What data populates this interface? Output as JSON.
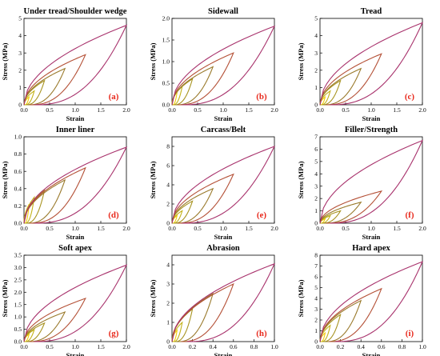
{
  "colors": {
    "cycles": [
      "#f2cc0c",
      "#c3b217",
      "#a79320",
      "#9a7a2c",
      "#b45036",
      "#a8326c"
    ],
    "panel_label": "#e8291c"
  },
  "chart_data": [
    {
      "type": "line",
      "title": "Under tread/Shoulder wedge",
      "xlabel": "Strain",
      "ylabel": "Stress (MPa)",
      "label": "(a)",
      "xlim": [
        0,
        2.0
      ],
      "xticks": [
        "0.0",
        "0.5",
        "1.0",
        "1.5",
        "2.0"
      ],
      "xtick_vals": [
        0,
        0.5,
        1.0,
        1.5,
        2.0
      ],
      "ylim": [
        0,
        5
      ],
      "yticks": [
        "0",
        "1",
        "2",
        "3",
        "4",
        "5"
      ],
      "ytick_vals": [
        0,
        1,
        2,
        3,
        4,
        5
      ],
      "cycles": [
        {
          "strain": 0.1,
          "stress": 0.45
        },
        {
          "strain": 0.2,
          "stress": 0.8
        },
        {
          "strain": 0.4,
          "stress": 1.4
        },
        {
          "strain": 0.8,
          "stress": 2.1
        },
        {
          "strain": 1.2,
          "stress": 2.9
        },
        {
          "strain": 2.0,
          "stress": 4.6
        }
      ],
      "loading_shape": 0.5,
      "unloading_shape": 2.5,
      "residual_fraction": 0.1
    },
    {
      "type": "line",
      "title": "Sidewall",
      "xlabel": "Strain",
      "ylabel": "Stress (MPa)",
      "label": "(b)",
      "xlim": [
        0,
        2.0
      ],
      "xticks": [
        "0.0",
        "0.5",
        "1.0",
        "1.5",
        "2.0"
      ],
      "xtick_vals": [
        0,
        0.5,
        1.0,
        1.5,
        2.0
      ],
      "ylim": [
        0,
        2.0
      ],
      "yticks": [
        "0.0",
        "0.5",
        "1.0",
        "1.5",
        "2.0"
      ],
      "ytick_vals": [
        0,
        0.5,
        1.0,
        1.5,
        2.0
      ],
      "cycles": [
        {
          "strain": 0.1,
          "stress": 0.3
        },
        {
          "strain": 0.2,
          "stress": 0.43
        },
        {
          "strain": 0.4,
          "stress": 0.6
        },
        {
          "strain": 0.8,
          "stress": 0.88
        },
        {
          "strain": 1.2,
          "stress": 1.2
        },
        {
          "strain": 2.0,
          "stress": 1.82
        }
      ],
      "loading_shape": 0.5,
      "unloading_shape": 2.5,
      "residual_fraction": 0.1
    },
    {
      "type": "line",
      "title": "Tread",
      "xlabel": "Strain",
      "ylabel": "Stress (MPa)",
      "label": "(c)",
      "xlim": [
        0,
        2.0
      ],
      "xticks": [
        "0.0",
        "0.5",
        "1.0",
        "1.5",
        "2.0"
      ],
      "xtick_vals": [
        0,
        0.5,
        1.0,
        1.5,
        2.0
      ],
      "ylim": [
        0,
        5
      ],
      "yticks": [
        "0",
        "1",
        "2",
        "3",
        "4",
        "5"
      ],
      "ytick_vals": [
        0,
        1,
        2,
        3,
        4,
        5
      ],
      "cycles": [
        {
          "strain": 0.1,
          "stress": 0.45
        },
        {
          "strain": 0.2,
          "stress": 0.8
        },
        {
          "strain": 0.4,
          "stress": 1.4
        },
        {
          "strain": 0.8,
          "stress": 2.1
        },
        {
          "strain": 1.2,
          "stress": 2.95
        },
        {
          "strain": 2.0,
          "stress": 4.75
        }
      ],
      "loading_shape": 0.5,
      "unloading_shape": 2.5,
      "residual_fraction": 0.1
    },
    {
      "type": "line",
      "title": "Inner liner",
      "xlabel": "Strain",
      "ylabel": "Stress (MPa)",
      "label": "(d)",
      "xlim": [
        0,
        2.0
      ],
      "xticks": [
        "0.0",
        "0.5",
        "1.0",
        "1.5",
        "2.0"
      ],
      "xtick_vals": [
        0,
        0.5,
        1.0,
        1.5,
        2.0
      ],
      "ylim": [
        0,
        1.0
      ],
      "yticks": [
        "0.0",
        "0.2",
        "0.4",
        "0.6",
        "0.8",
        "1.0"
      ],
      "ytick_vals": [
        0,
        0.2,
        0.4,
        0.6,
        0.8,
        1.0
      ],
      "cycles": [
        {
          "strain": 0.1,
          "stress": 0.22
        },
        {
          "strain": 0.2,
          "stress": 0.3
        },
        {
          "strain": 0.4,
          "stress": 0.38
        },
        {
          "strain": 0.8,
          "stress": 0.5
        },
        {
          "strain": 1.2,
          "stress": 0.64
        },
        {
          "strain": 2.0,
          "stress": 0.88
        }
      ],
      "loading_shape": 0.5,
      "unloading_shape": 2.5,
      "residual_fraction": 0.1
    },
    {
      "type": "line",
      "title": "Carcass/Belt",
      "xlabel": "Strain",
      "ylabel": "Stress (MPa)",
      "label": "(e)",
      "xlim": [
        0,
        2.0
      ],
      "xticks": [
        "0.0",
        "0.5",
        "1.0",
        "1.5",
        "2.0"
      ],
      "xtick_vals": [
        0,
        0.5,
        1.0,
        1.5,
        2.0
      ],
      "ylim": [
        0,
        9
      ],
      "yticks": [
        "0",
        "2",
        "4",
        "6",
        "8"
      ],
      "ytick_vals": [
        0,
        2,
        4,
        6,
        8
      ],
      "cycles": [
        {
          "strain": 0.1,
          "stress": 0.8
        },
        {
          "strain": 0.2,
          "stress": 1.3
        },
        {
          "strain": 0.4,
          "stress": 2.3
        },
        {
          "strain": 0.8,
          "stress": 3.6
        },
        {
          "strain": 1.2,
          "stress": 5.1
        },
        {
          "strain": 2.0,
          "stress": 8.0
        }
      ],
      "loading_shape": 0.5,
      "unloading_shape": 2.5,
      "residual_fraction": 0.1
    },
    {
      "type": "line",
      "title": "Filler/Strength",
      "xlabel": "Strain",
      "ylabel": "Stress (MPa)",
      "label": "(f)",
      "xlim": [
        0,
        2.0
      ],
      "xticks": [
        "0.0",
        "0.5",
        "1.0",
        "1.5",
        "2.0"
      ],
      "xtick_vals": [
        0,
        0.5,
        1.0,
        1.5,
        2.0
      ],
      "ylim": [
        0,
        7
      ],
      "yticks": [
        "0",
        "1",
        "2",
        "3",
        "4",
        "5",
        "6",
        "7"
      ],
      "ytick_vals": [
        0,
        1,
        2,
        3,
        4,
        5,
        6,
        7
      ],
      "cycles": [
        {
          "strain": 0.1,
          "stress": 0.35
        },
        {
          "strain": 0.2,
          "stress": 0.6
        },
        {
          "strain": 0.4,
          "stress": 1.0
        },
        {
          "strain": 0.8,
          "stress": 1.7
        },
        {
          "strain": 1.2,
          "stress": 2.6
        },
        {
          "strain": 2.0,
          "stress": 6.7
        }
      ],
      "loading_shape": 0.5,
      "unloading_shape": 2.5,
      "residual_fraction": 0.1
    },
    {
      "type": "line",
      "title": "Soft apex",
      "xlabel": "Strain",
      "ylabel": "Stress (MPa)",
      "label": "(g)",
      "xlim": [
        0,
        2.0
      ],
      "xticks": [
        "0.0",
        "0.5",
        "1.0",
        "1.5",
        "2.0"
      ],
      "xtick_vals": [
        0,
        0.5,
        1.0,
        1.5,
        2.0
      ],
      "ylim": [
        0,
        3.5
      ],
      "yticks": [
        "0.0",
        "0.5",
        "1.0",
        "1.5",
        "2.0",
        "2.5",
        "3.0",
        "3.5"
      ],
      "ytick_vals": [
        0,
        0.5,
        1.0,
        1.5,
        2.0,
        2.5,
        3.0,
        3.5
      ],
      "cycles": [
        {
          "strain": 0.1,
          "stress": 0.3
        },
        {
          "strain": 0.2,
          "stress": 0.48
        },
        {
          "strain": 0.4,
          "stress": 0.75
        },
        {
          "strain": 0.8,
          "stress": 1.2
        },
        {
          "strain": 1.2,
          "stress": 1.75
        },
        {
          "strain": 2.0,
          "stress": 3.1
        }
      ],
      "loading_shape": 0.5,
      "unloading_shape": 2.5,
      "residual_fraction": 0.1
    },
    {
      "type": "line",
      "title": "Abrasion",
      "xlabel": "Strain",
      "ylabel": "Stress (MPa)",
      "label": "(h)",
      "xlim": [
        0,
        1.0
      ],
      "xticks": [
        "0.0",
        "0.2",
        "0.4",
        "0.6",
        "0.8",
        "1.0"
      ],
      "xtick_vals": [
        0,
        0.2,
        0.4,
        0.6,
        0.8,
        1.0
      ],
      "ylim": [
        0,
        4.5
      ],
      "yticks": [
        "0",
        "1",
        "2",
        "3",
        "4"
      ],
      "ytick_vals": [
        0,
        1,
        2,
        3,
        4
      ],
      "cycles": [
        {
          "strain": 0.05,
          "stress": 0.6
        },
        {
          "strain": 0.1,
          "stress": 1.0
        },
        {
          "strain": 0.2,
          "stress": 1.7
        },
        {
          "strain": 0.4,
          "stress": 2.5
        },
        {
          "strain": 0.6,
          "stress": 3.0
        },
        {
          "strain": 1.0,
          "stress": 4.05
        }
      ],
      "loading_shape": 0.5,
      "unloading_shape": 2.5,
      "residual_fraction": 0.15
    },
    {
      "type": "line",
      "title": "Hard apex",
      "xlabel": "Strain",
      "ylabel": "Stress (MPa)",
      "label": "(i)",
      "xlim": [
        0,
        1.0
      ],
      "xticks": [
        "0.0",
        "0.2",
        "0.4",
        "0.6",
        "0.8",
        "1.0"
      ],
      "xtick_vals": [
        0,
        0.2,
        0.4,
        0.6,
        0.8,
        1.0
      ],
      "ylim": [
        0,
        8
      ],
      "yticks": [
        "0",
        "1",
        "2",
        "3",
        "4",
        "5",
        "6",
        "7",
        "8"
      ],
      "ytick_vals": [
        0,
        1,
        2,
        3,
        4,
        5,
        6,
        7,
        8
      ],
      "cycles": [
        {
          "strain": 0.05,
          "stress": 0.8
        },
        {
          "strain": 0.1,
          "stress": 1.5
        },
        {
          "strain": 0.2,
          "stress": 2.5
        },
        {
          "strain": 0.4,
          "stress": 3.8
        },
        {
          "strain": 0.6,
          "stress": 4.9
        },
        {
          "strain": 1.0,
          "stress": 7.4
        }
      ],
      "loading_shape": 0.5,
      "unloading_shape": 2.5,
      "residual_fraction": 0.15
    }
  ]
}
